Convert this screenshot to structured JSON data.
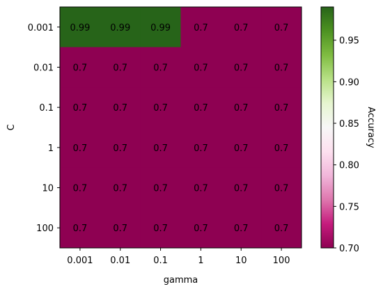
{
  "chart_data": {
    "type": "heatmap",
    "xlabel": "gamma",
    "ylabel": "C",
    "x_categories": [
      "0.001",
      "0.01",
      "0.1",
      "1",
      "10",
      "100"
    ],
    "y_categories": [
      "0.001",
      "0.01",
      "0.1",
      "1",
      "10",
      "100"
    ],
    "values": [
      [
        0.99,
        0.99,
        0.99,
        0.7,
        0.7,
        0.7
      ],
      [
        0.7,
        0.7,
        0.7,
        0.7,
        0.7,
        0.7
      ],
      [
        0.7,
        0.7,
        0.7,
        0.7,
        0.7,
        0.7
      ],
      [
        0.7,
        0.7,
        0.7,
        0.7,
        0.7,
        0.7
      ],
      [
        0.7,
        0.7,
        0.7,
        0.7,
        0.7,
        0.7
      ],
      [
        0.7,
        0.7,
        0.7,
        0.7,
        0.7,
        0.7
      ]
    ],
    "colorbar": {
      "label": "Accuracy",
      "colormap": "PiYG",
      "range": [
        0.7,
        0.99
      ],
      "ticks": [
        0.7,
        0.75,
        0.8,
        0.85,
        0.9,
        0.95
      ],
      "tick_labels": [
        "0.70",
        "0.75",
        "0.80",
        "0.85",
        "0.90",
        "0.95"
      ]
    },
    "colors": {
      "low": "#8e0152",
      "high": "#276419"
    },
    "grid": false
  }
}
